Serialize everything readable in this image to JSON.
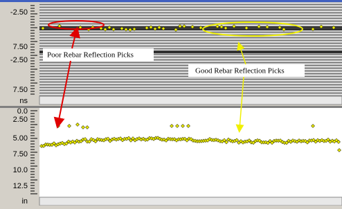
{
  "top_axis": {
    "ticks": [
      "-2.50",
      "7.50",
      "-2.50",
      "7.50"
    ],
    "unit": "ns"
  },
  "bottom_axis": {
    "ticks": [
      "0.0",
      "2.50",
      "5.00",
      "7.50",
      "10.0",
      "12.5"
    ],
    "unit": "in"
  },
  "annotations": [
    "Poor Rebar Reflection Picks",
    "Good Rebar Reflection Picks"
  ]
}
